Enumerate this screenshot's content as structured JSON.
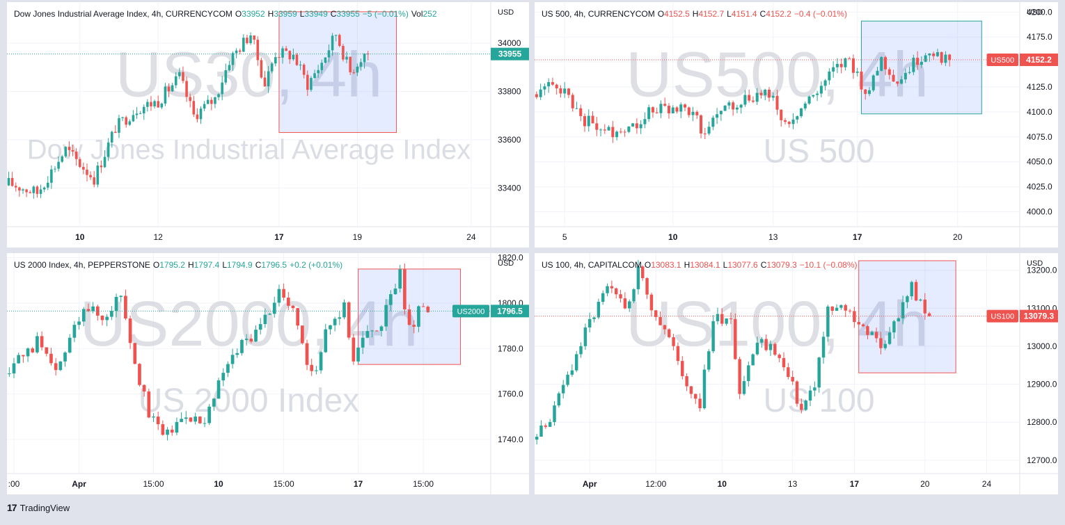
{
  "footer": {
    "brand": "TradingView",
    "logo_icon": "tradingview-logo-icon"
  },
  "panes": [
    {
      "id": "us30",
      "header": {
        "name": "Dow Jones Industrial Average Index, 4h, CURRENCYCOM",
        "o_label": "O",
        "o": "33952",
        "h_label": "H",
        "h": "33959",
        "l_label": "L",
        "l": "33949",
        "c_label": "C",
        "c": "33955",
        "change": "−5 (−0.01%)",
        "vol_label": "Vol",
        "vol": "252",
        "color": "up"
      },
      "watermark": {
        "big": "US30, 4h",
        "small": "Dow Jones Industrial Average Index"
      },
      "price_label": {
        "text": "33955",
        "value": 33955,
        "color": "#26a69a"
      },
      "chart_data": {
        "type": "candlestick",
        "currency": "USD",
        "ylim": [
          33240,
          34170
        ],
        "y_ticks": [
          34000,
          33800,
          33600,
          33400
        ],
        "x_ticks": [
          {
            "label": "10",
            "i": 20
          },
          {
            "label": "12",
            "i": 42
          },
          {
            "label": "17",
            "i": 76
          },
          {
            "label": "19",
            "i": 98
          },
          {
            "label": "24",
            "i": 130
          }
        ],
        "n_slots": 136,
        "current_price": 33955,
        "selection": {
          "i0": 76,
          "i1": 109,
          "p0": 33630,
          "p1": 34130,
          "color": "#ef5350"
        },
        "anchors": [
          [
            0,
            33420
          ],
          [
            8,
            33380
          ],
          [
            16,
            33560
          ],
          [
            24,
            33440
          ],
          [
            30,
            33650
          ],
          [
            36,
            33730
          ],
          [
            42,
            33760
          ],
          [
            48,
            33860
          ],
          [
            52,
            33700
          ],
          [
            58,
            33770
          ],
          [
            62,
            33930
          ],
          [
            68,
            34040
          ],
          [
            72,
            33830
          ],
          [
            75,
            33960
          ],
          [
            80,
            33950
          ],
          [
            84,
            33830
          ],
          [
            88,
            33920
          ],
          [
            92,
            34040
          ],
          [
            96,
            33880
          ],
          [
            100,
            33960
          ],
          [
            101,
            33955
          ]
        ]
      }
    },
    {
      "id": "us500",
      "header": {
        "name": "US 500, 4h, CURRENCYCOM",
        "o_label": "O",
        "o": "4152.5",
        "h_label": "H",
        "h": "4152.7",
        "l_label": "L",
        "l": "4151.4",
        "c_label": "C",
        "c": "4152.2",
        "change": "−0.4 (−0.01%)",
        "vol_label": "",
        "vol": "",
        "color": "dn"
      },
      "watermark": {
        "big": "US500, 4h",
        "small": "US 500"
      },
      "price_label": {
        "sym": "US500",
        "text": "4152.2",
        "value": 4152.2,
        "color": "#ef5350"
      },
      "chart_data": {
        "type": "candlestick",
        "currency": "USD",
        "ylim": [
          3985,
          4210
        ],
        "y_ticks": [
          4200,
          4175,
          4150,
          4125,
          4100,
          4075,
          4050,
          4025,
          4000
        ],
        "x_ticks": [
          {
            "label": "5",
            "i": 7
          },
          {
            "label": "10",
            "i": 34
          },
          {
            "label": "13",
            "i": 59
          },
          {
            "label": "17",
            "i": 80
          },
          {
            "label": "20",
            "i": 105
          }
        ],
        "n_slots": 121,
        "current_price": 4152.2,
        "selection": {
          "i0": 81,
          "i1": 111,
          "p0": 4098,
          "p1": 4191,
          "color": "#26a69a"
        },
        "anchors": [
          [
            0,
            4120
          ],
          [
            5,
            4128
          ],
          [
            8,
            4115
          ],
          [
            12,
            4092
          ],
          [
            18,
            4080
          ],
          [
            24,
            4087
          ],
          [
            28,
            4100
          ],
          [
            34,
            4105
          ],
          [
            38,
            4100
          ],
          [
            42,
            4080
          ],
          [
            46,
            4102
          ],
          [
            52,
            4113
          ],
          [
            58,
            4120
          ],
          [
            62,
            4088
          ],
          [
            66,
            4103
          ],
          [
            70,
            4120
          ],
          [
            74,
            4140
          ],
          [
            78,
            4152
          ],
          [
            82,
            4120
          ],
          [
            86,
            4152
          ],
          [
            90,
            4130
          ],
          [
            95,
            4152
          ],
          [
            98,
            4162
          ],
          [
            101,
            4155
          ],
          [
            103,
            4152
          ]
        ]
      }
    },
    {
      "id": "us2000",
      "header": {
        "name": "US 2000 Index, 4h, PEPPERSTONE",
        "o_label": "O",
        "o": "1795.2",
        "h_label": "H",
        "h": "1797.4",
        "l_label": "L",
        "l": "1794.9",
        "c_label": "C",
        "c": "1796.5",
        "change": "+0.2 (+0.01%)",
        "vol_label": "",
        "vol": "",
        "color": "up"
      },
      "watermark": {
        "big": "US2000, 4h",
        "small": "US 2000 Index"
      },
      "price_label": {
        "sym": "US2000",
        "text": "1796.5",
        "value": 1796.5,
        "color": "#26a69a"
      },
      "chart_data": {
        "type": "candlestick",
        "currency": "USD",
        "ylim": [
          1725,
          1822
        ],
        "y_ticks": [
          1820,
          1800,
          1780,
          1760,
          1740
        ],
        "x_ticks": [
          {
            "label": ":00",
            "i": 1
          },
          {
            "label": "Apr",
            "i": 15
          },
          {
            "label": "15:00",
            "i": 31
          },
          {
            "label": "10",
            "i": 45
          },
          {
            "label": "15:00",
            "i": 59
          },
          {
            "label": "17",
            "i": 75
          },
          {
            "label": "15:00",
            "i": 89
          }
        ],
        "n_slots": 104,
        "current_price": 1796.5,
        "selection": {
          "i0": 75,
          "i1": 97,
          "p0": 1773,
          "p1": 1815,
          "color": "#ef5350"
        },
        "anchors": [
          [
            0,
            1770
          ],
          [
            6,
            1783
          ],
          [
            10,
            1768
          ],
          [
            16,
            1800
          ],
          [
            20,
            1793
          ],
          [
            24,
            1805
          ],
          [
            27,
            1775
          ],
          [
            30,
            1750
          ],
          [
            34,
            1742
          ],
          [
            38,
            1752
          ],
          [
            42,
            1746
          ],
          [
            46,
            1770
          ],
          [
            50,
            1782
          ],
          [
            54,
            1790
          ],
          [
            58,
            1806
          ],
          [
            62,
            1792
          ],
          [
            64,
            1770
          ],
          [
            66,
            1772
          ],
          [
            68,
            1790
          ],
          [
            72,
            1798
          ],
          [
            74,
            1776
          ],
          [
            76,
            1784
          ],
          [
            80,
            1792
          ],
          [
            84,
            1812
          ],
          [
            86,
            1788
          ],
          [
            88,
            1796
          ],
          [
            90,
            1796
          ]
        ]
      }
    },
    {
      "id": "us100",
      "header": {
        "name": "US 100, 4h, CAPITALCOM",
        "o_label": "O",
        "o": "13083.1",
        "h_label": "H",
        "h": "13084.1",
        "l_label": "L",
        "l": "13077.6",
        "c_label": "C",
        "c": "13079.3",
        "change": "−10.1 (−0.08%)",
        "vol_label": "",
        "vol": "",
        "color": "dn"
      },
      "watermark": {
        "big": "US100, 4h",
        "small": "US 100"
      },
      "price_label": {
        "sym": "US100",
        "text": "13079.3",
        "value": 13079.3,
        "color": "#ef5350"
      },
      "chart_data": {
        "type": "candlestick",
        "currency": "USD",
        "ylim": [
          12665,
          13245
        ],
        "y_ticks": [
          13200,
          13100,
          13000,
          12900,
          12800,
          12700
        ],
        "x_ticks": [
          {
            "label": "Apr",
            "i": 12
          },
          {
            "label": "12:00",
            "i": 27
          },
          {
            "label": "10",
            "i": 42
          },
          {
            "label": "13",
            "i": 58
          },
          {
            "label": "17",
            "i": 72
          },
          {
            "label": "20",
            "i": 88
          },
          {
            "label": "24",
            "i": 102
          }
        ],
        "n_slots": 110,
        "current_price": 13079.3,
        "selection": {
          "i0": 73,
          "i1": 95,
          "p0": 12930,
          "p1": 13225,
          "color": "#ef5350"
        },
        "anchors": [
          [
            0,
            12760
          ],
          [
            4,
            12830
          ],
          [
            8,
            12950
          ],
          [
            12,
            13060
          ],
          [
            16,
            13150
          ],
          [
            20,
            13100
          ],
          [
            23,
            13200
          ],
          [
            26,
            13110
          ],
          [
            30,
            13020
          ],
          [
            34,
            12900
          ],
          [
            37,
            12850
          ],
          [
            40,
            13070
          ],
          [
            44,
            13080
          ],
          [
            46,
            12880
          ],
          [
            50,
            13010
          ],
          [
            54,
            12990
          ],
          [
            58,
            12890
          ],
          [
            60,
            12830
          ],
          [
            63,
            12900
          ],
          [
            66,
            13090
          ],
          [
            70,
            13100
          ],
          [
            74,
            13050
          ],
          [
            78,
            13000
          ],
          [
            82,
            13080
          ],
          [
            85,
            13160
          ],
          [
            88,
            13080
          ],
          [
            89,
            13079
          ]
        ]
      }
    }
  ]
}
